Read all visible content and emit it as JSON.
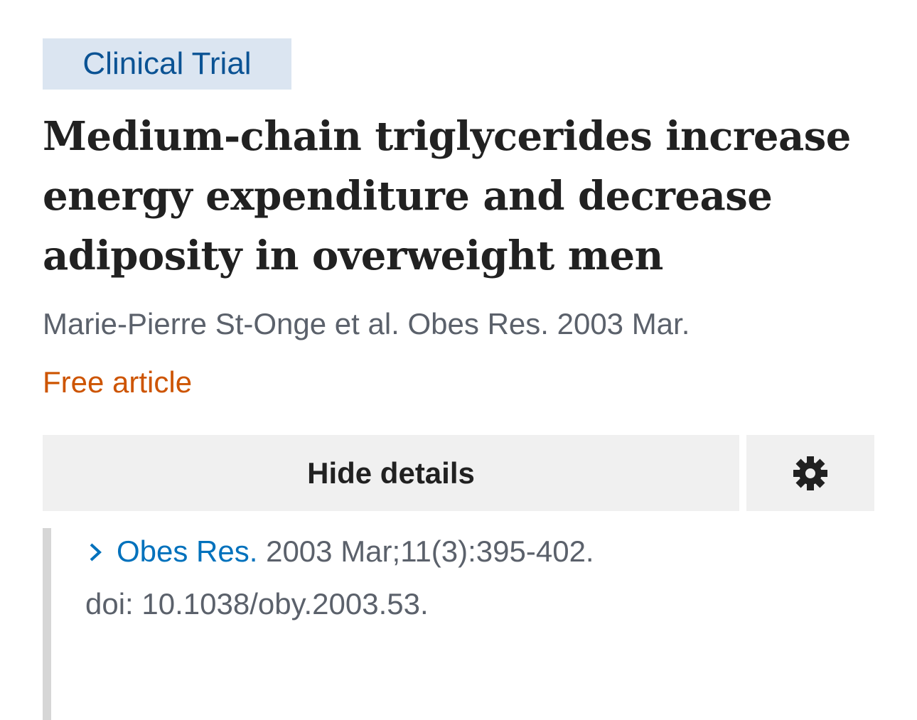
{
  "badge": "Clinical Trial",
  "title": "Medium-chain triglycerides increase energy expenditure and decrease adiposity in overweight men",
  "citation": "Marie-Pierre St-Onge et al. Obes Res. 2003 Mar.",
  "free_label": "Free article",
  "details_button": "Hide details",
  "details": {
    "journal": "Obes Res.",
    "reference": "2003 Mar;11(3):395-402.",
    "doi": "doi: 10.1038/oby.2003.53."
  }
}
